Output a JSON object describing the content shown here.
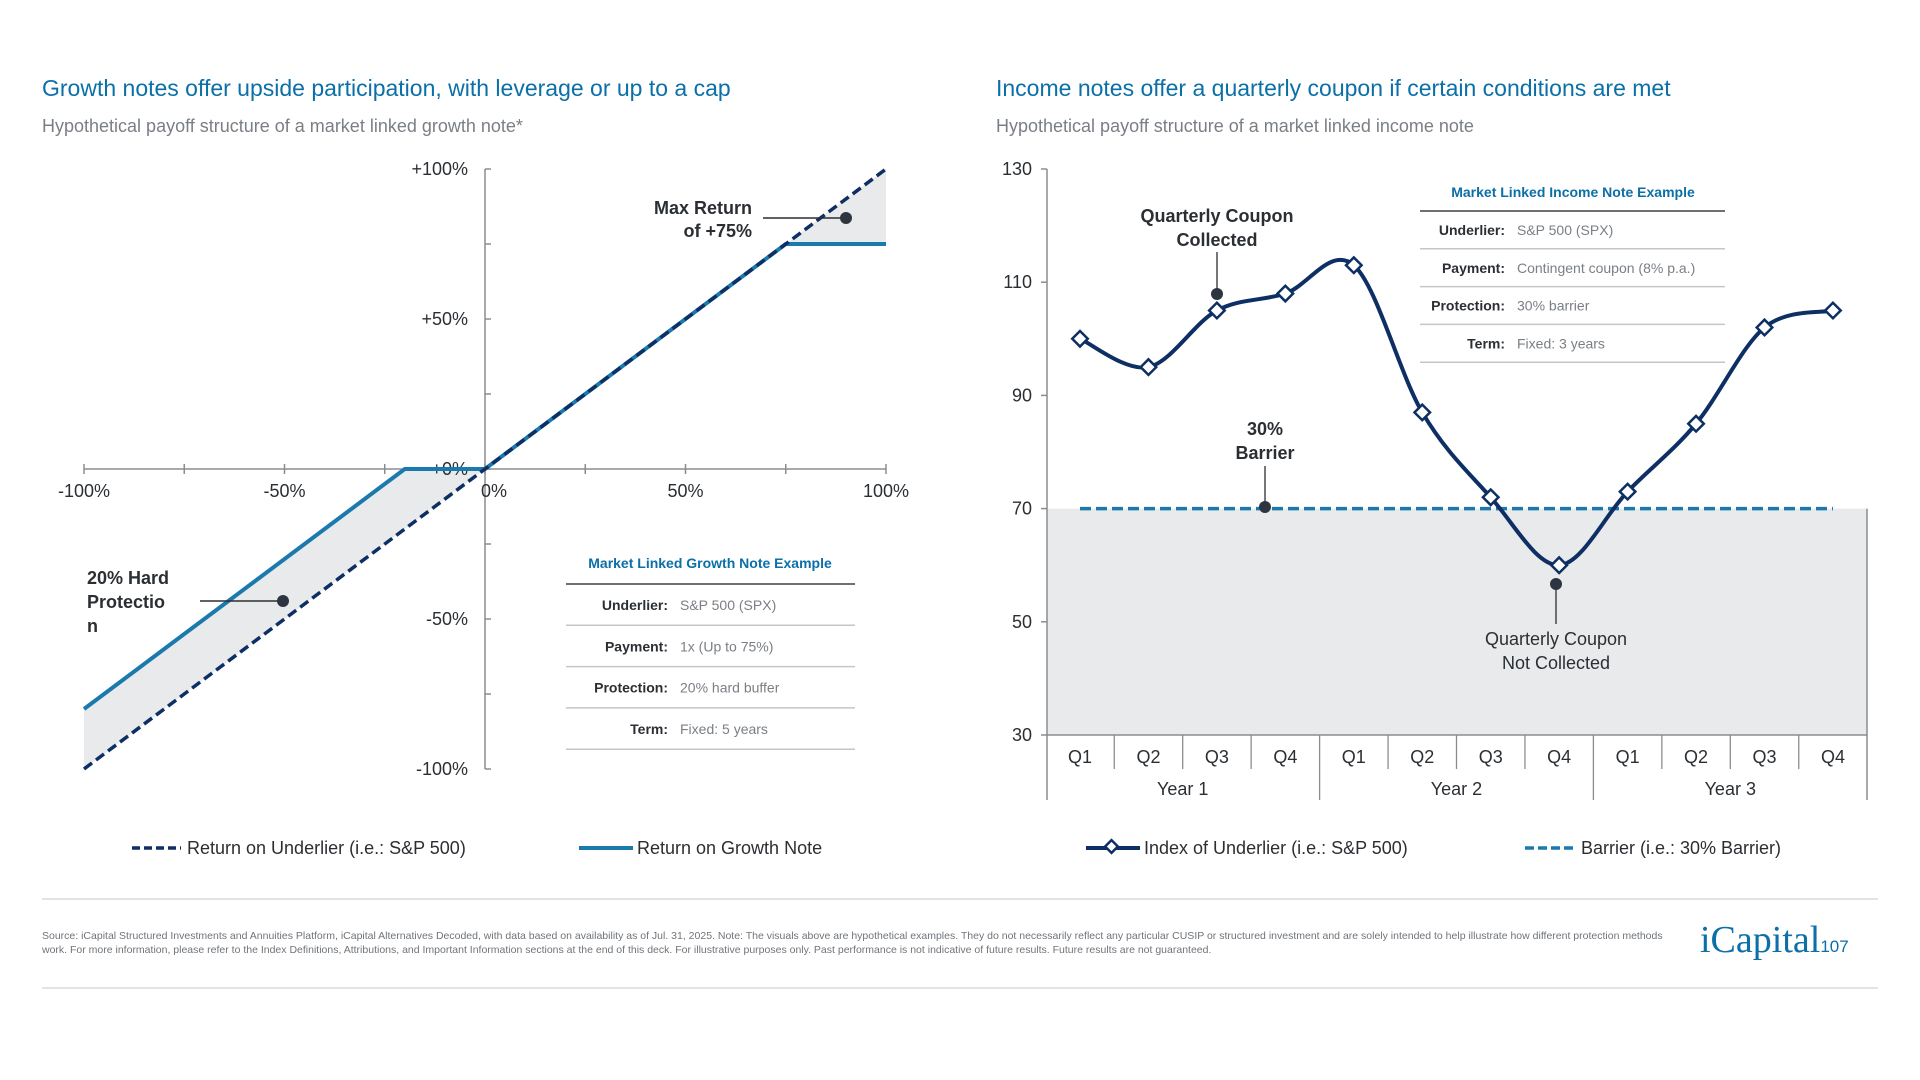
{
  "colors": {
    "title": "#0b6fa8",
    "underlier": "#0d2f63",
    "growth_note": "#1a79ad",
    "barrier": "#1a79ad",
    "shade": "#e9eaeb",
    "text": "#2b2f33",
    "muted": "#7a7f85"
  },
  "left": {
    "title": "Growth notes offer upside participation, with leverage or up to a cap",
    "subtitle": "Hypothetical payoff structure of a market linked growth note*",
    "annotations": {
      "max_return": [
        "Max Return",
        "of +75%"
      ],
      "protection": [
        "20% Hard",
        "Protectio",
        "n"
      ]
    },
    "table": {
      "title": "Market Linked Growth Note Example",
      "rows": [
        {
          "label": "Underlier:",
          "value": "S&P 500 (SPX)"
        },
        {
          "label": "Payment:",
          "value": "1x (Up to 75%)"
        },
        {
          "label": "Protection:",
          "value": "20% hard buffer"
        },
        {
          "label": "Term:",
          "value": "Fixed: 5 years"
        }
      ]
    },
    "legend": [
      {
        "label": "Return on Underlier (i.e.: S&P 500)",
        "style": "dashed"
      },
      {
        "label": "Return on Growth Note",
        "style": "solid"
      }
    ]
  },
  "right": {
    "title": "Income notes offer a quarterly coupon if certain conditions are met",
    "subtitle": "Hypothetical payoff structure of a market linked income note",
    "annotations": {
      "collected": [
        "Quarterly Coupon",
        "Collected"
      ],
      "barrier": [
        "30%",
        "Barrier"
      ],
      "not_collected": [
        "Quarterly Coupon",
        "Not Collected"
      ]
    },
    "table": {
      "title": "Market Linked Income Note Example",
      "rows": [
        {
          "label": "Underlier:",
          "value": "S&P 500 (SPX)"
        },
        {
          "label": "Payment:",
          "value": "Contingent coupon (8% p.a.)"
        },
        {
          "label": "Protection:",
          "value": "30% barrier"
        },
        {
          "label": "Term:",
          "value": "Fixed: 3 years"
        }
      ]
    },
    "legend": [
      {
        "label": "Index of Underlier (i.e.: S&P 500)",
        "style": "line-diamond"
      },
      {
        "label": "Barrier (i.e.: 30% Barrier)",
        "style": "dashed"
      }
    ]
  },
  "chart_data": [
    {
      "type": "line",
      "title": "Growth notes offer upside participation, with leverage or up to a cap",
      "xlim": [
        -100,
        100
      ],
      "ylim": [
        -100,
        100
      ],
      "x_ticks": [
        "-100%",
        "-50%",
        "0%",
        "50%",
        "100%"
      ],
      "x_tick_values": [
        -100,
        -50,
        0,
        50,
        100
      ],
      "y_ticks": [
        "+100%",
        "+50%",
        "+0%",
        "-50%",
        "-100%"
      ],
      "y_tick_values": [
        100,
        50,
        0,
        -50,
        -100
      ],
      "grid": false,
      "legend": "bottom",
      "series": [
        {
          "name": "Return on Underlier (i.e.: S&P 500)",
          "points": [
            [
              -100,
              -100
            ],
            [
              100,
              100
            ]
          ]
        },
        {
          "name": "Return on Growth Note",
          "points": [
            [
              -100,
              -80
            ],
            [
              -20,
              0
            ],
            [
              0,
              0
            ],
            [
              75,
              75
            ],
            [
              100,
              75
            ]
          ]
        }
      ]
    },
    {
      "type": "line",
      "title": "Income notes offer a quarterly coupon if certain conditions are met",
      "categories": [
        "Q1",
        "Q2",
        "Q3",
        "Q4",
        "Q1",
        "Q2",
        "Q3",
        "Q4",
        "Q1",
        "Q2",
        "Q3",
        "Q4"
      ],
      "groups": [
        "Year 1",
        "Year 2",
        "Year 3"
      ],
      "ylim": [
        30,
        130
      ],
      "y_ticks": [
        "130",
        "110",
        "90",
        "70",
        "50",
        "30"
      ],
      "y_tick_values": [
        130,
        110,
        90,
        70,
        50,
        30
      ],
      "grid": false,
      "legend": "bottom",
      "series": [
        {
          "name": "Index of Underlier (i.e.: S&P 500)",
          "values": [
            100,
            95,
            105,
            108,
            113,
            87,
            72,
            60,
            73,
            85,
            102,
            105
          ]
        },
        {
          "name": "Barrier (i.e.: 30% Barrier)",
          "values": [
            70,
            70,
            70,
            70,
            70,
            70,
            70,
            70,
            70,
            70,
            70,
            70
          ]
        }
      ]
    }
  ],
  "footer": {
    "source": "Source: iCapital Structured Investments and Annuities Platform, iCapital Alternatives Decoded, with data based on availability as of Jul. 31, 2025. Note: The visuals above are hypothetical examples. They do not necessarily reflect any particular CUSIP or structured investment and are solely intended to help illustrate how different protection methods work. For more information, please refer to the Index Definitions, Attributions, and Important Information sections at the end of this deck. For illustrative purposes only. Past performance is not indicative of future results. Future results are not guaranteed.",
    "logo": "iCapital",
    "page_number": "107"
  }
}
